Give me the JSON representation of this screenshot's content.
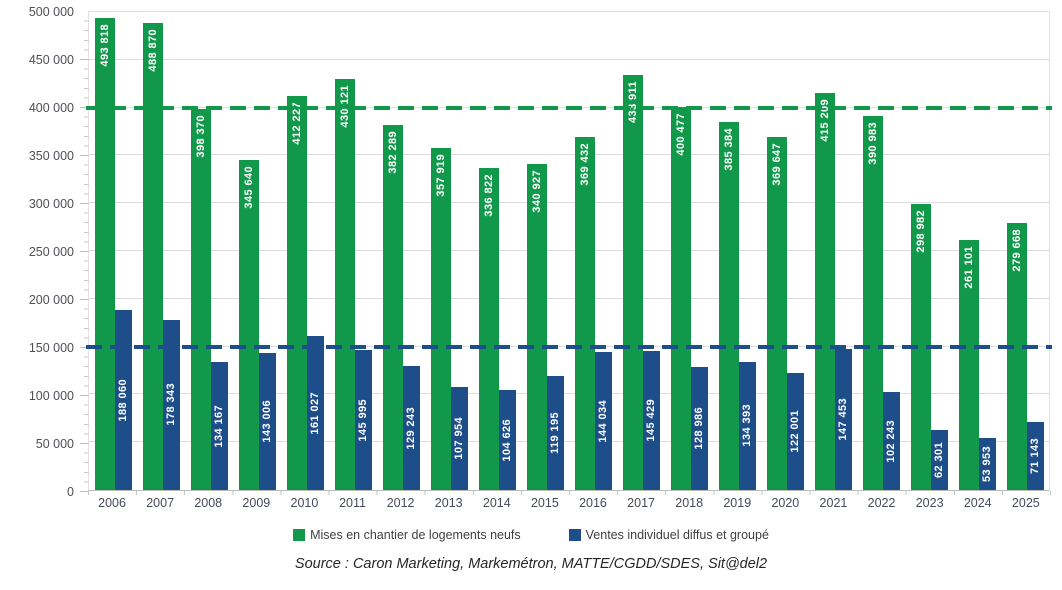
{
  "chart_data": {
    "type": "bar",
    "title": "",
    "categories": [
      "2006",
      "2007",
      "2008",
      "2009",
      "2010",
      "2011",
      "2012",
      "2013",
      "2014",
      "2015",
      "2016",
      "2017",
      "2018",
      "2019",
      "2020",
      "2021",
      "2022",
      "2023",
      "2024",
      "2025"
    ],
    "series": [
      {
        "name": "Mises en chantier de logements neufs",
        "color": "#12984B",
        "values": [
          493818,
          488870,
          398370,
          345640,
          412227,
          430121,
          382289,
          357919,
          336822,
          340927,
          369432,
          433911,
          400477,
          385384,
          369647,
          415209,
          390983,
          298982,
          261101,
          279668
        ]
      },
      {
        "name": "Ventes individuel diffus et groupé",
        "color": "#1D4E89",
        "values": [
          188060,
          178343,
          134167,
          143006,
          161027,
          145995,
          129243,
          107954,
          104626,
          119195,
          144034,
          145429,
          128986,
          134393,
          122001,
          147453,
          102243,
          62301,
          53953,
          71143
        ]
      }
    ],
    "ylim": [
      0,
      500000
    ],
    "ytick_step": 50000,
    "ytick_labels": [
      "0",
      "50 000",
      "100 000",
      "150 000",
      "200 000",
      "250 000",
      "300 000",
      "350 000",
      "400 000",
      "450 000",
      "500 000"
    ],
    "grid": true,
    "legend_position": "bottom",
    "bar_label_color": "#FFFFFF",
    "number_format": "space thousands separator",
    "reference_lines": [
      {
        "value": 400000,
        "color": "#12984B",
        "style": "dashed",
        "name": "green-reference-400000"
      },
      {
        "value": 150000,
        "color": "#1D4E89",
        "style": "dashed",
        "name": "blue-reference-150000"
      }
    ]
  },
  "source_text": "Source : Caron Marketing, Markemétron, MATTE/CGDD/SDES, Sit@del2"
}
